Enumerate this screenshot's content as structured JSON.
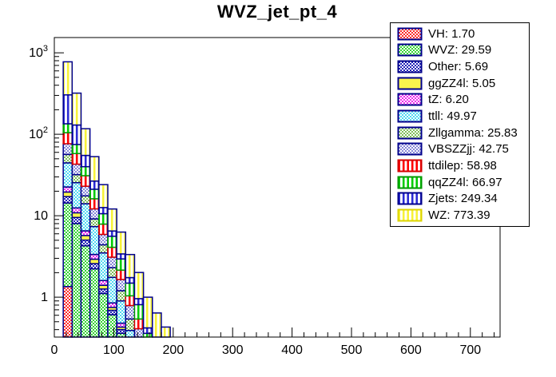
{
  "title": "WVZ_jet_pt_4",
  "chart_data": {
    "type": "stacked-step-histogram",
    "title": "WVZ_jet_pt_4",
    "x_range": [
      0,
      750
    ],
    "x_major_step": 100,
    "x_minor_step": 20,
    "x_tick_labels": [
      "0",
      "100",
      "200",
      "300",
      "400",
      "500",
      "600",
      "700"
    ],
    "y_scale": "log",
    "y_range": [
      0.324,
      1540
    ],
    "y_ticks": [
      {
        "value": 1,
        "base": "1",
        "sup": ""
      },
      {
        "value": 10,
        "base": "10",
        "sup": ""
      },
      {
        "value": 100,
        "base": "10",
        "sup": "2"
      },
      {
        "value": 1000,
        "base": "10",
        "sup": "3"
      }
    ],
    "grid": false,
    "legend_position": "top-right",
    "bin_edges": [
      15,
      30,
      45,
      60,
      75,
      90,
      105,
      120,
      135,
      150,
      165,
      180,
      195
    ],
    "series": [
      {
        "name": "VH",
        "label": "VH: 1.70",
        "integral": 1.7,
        "pattern": "checker",
        "fill": "#ff2a2a",
        "line": "#00008b",
        "legend_border": "#00008b",
        "values": [
          1.35,
          0.22,
          0.07,
          0.03,
          0.01,
          0.01,
          0.01,
          0,
          0,
          0,
          0,
          0
        ]
      },
      {
        "name": "WVZ",
        "label": "WVZ: 29.59",
        "integral": 29.59,
        "pattern": "checker",
        "fill": "#35d435",
        "line": "#00008b",
        "legend_border": "#00008b",
        "values": [
          13.0,
          7.8,
          4.2,
          2.2,
          1.1,
          0.6,
          0.35,
          0.2,
          0.08,
          0.04,
          0.01,
          0.01
        ]
      },
      {
        "name": "Other",
        "label": "Other: 5.69",
        "integral": 5.69,
        "pattern": "checker",
        "fill": "#2121b8",
        "line": "#00008b",
        "legend_border": "#00008b",
        "values": [
          2.8,
          1.5,
          0.75,
          0.35,
          0.15,
          0.08,
          0.04,
          0.01,
          0.01,
          0,
          0,
          0
        ]
      },
      {
        "name": "ggZZ4l",
        "label": "ggZZ4l: 5.05",
        "integral": 5.05,
        "pattern": "solid",
        "fill": "#f9f44d",
        "line": "#00008b",
        "legend_border": "#00008b",
        "values": [
          2.4,
          1.35,
          0.7,
          0.35,
          0.14,
          0.06,
          0.03,
          0.01,
          0.01,
          0,
          0,
          0
        ]
      },
      {
        "name": "tZ",
        "label": "tZ: 6.20",
        "integral": 6.2,
        "pattern": "checker",
        "fill": "#ee2bee",
        "line": "#00008b",
        "legend_border": "#00008b",
        "values": [
          3.0,
          1.6,
          0.8,
          0.42,
          0.2,
          0.1,
          0.05,
          0.02,
          0.01,
          0,
          0,
          0
        ]
      },
      {
        "name": "ttll",
        "label": "ttll: 49.97",
        "integral": 49.97,
        "pattern": "checker",
        "fill": "#52d9f2",
        "line": "#00008b",
        "legend_border": "#00008b",
        "values": [
          22.0,
          13.0,
          7.5,
          4.0,
          1.9,
          0.9,
          0.42,
          0.15,
          0.07,
          0.02,
          0.01,
          0
        ]
      },
      {
        "name": "Zllgamma",
        "label": "Zllgamma: 25.83",
        "integral": 25.83,
        "pattern": "checker",
        "fill": "#7fbe59",
        "line": "#00008b",
        "legend_border": "#00008b",
        "values": [
          12.0,
          6.5,
          3.5,
          1.8,
          0.9,
          0.55,
          0.3,
          0.15,
          0.08,
          0.03,
          0.01,
          0.01
        ]
      },
      {
        "name": "VBSZZjj",
        "label": "VBSZZjj: 42.75",
        "integral": 42.75,
        "pattern": "checker",
        "fill": "#8787d8",
        "line": "#00008b",
        "legend_border": "#00008b",
        "values": [
          20.0,
          11.0,
          5.5,
          3.0,
          1.5,
          0.8,
          0.45,
          0.25,
          0.15,
          0.06,
          0.03,
          0.01
        ]
      },
      {
        "name": "ttdilep",
        "label": "ttdilep: 58.98",
        "integral": 58.98,
        "pattern": "vlines",
        "fill": "#ff0000",
        "line": "#d40000",
        "legend_border": "#d40000",
        "values": [
          28.0,
          15.0,
          8.0,
          4.0,
          2.0,
          1.0,
          0.5,
          0.25,
          0.13,
          0.06,
          0.03,
          0.01
        ]
      },
      {
        "name": "qqZZ4l",
        "label": "qqZZ4l: 66.97",
        "integral": 66.97,
        "pattern": "vlines",
        "fill": "#00cc00",
        "line": "#009900",
        "legend_border": "#009900",
        "values": [
          30.0,
          17.0,
          9.0,
          5.0,
          2.7,
          1.5,
          0.8,
          0.45,
          0.27,
          0.15,
          0.07,
          0.03
        ]
      },
      {
        "name": "Zjets",
        "label": "Zjets: 249.34",
        "integral": 249.34,
        "pattern": "vlines",
        "fill": "#2b2bd4",
        "line": "#00008b",
        "legend_border": "#00008b",
        "values": [
          170.0,
          55.0,
          15.0,
          5.5,
          2.0,
          0.9,
          0.45,
          0.25,
          0.15,
          0.06,
          0.02,
          0.01
        ]
      },
      {
        "name": "WZ",
        "label": "WZ: 773.39",
        "integral": 773.39,
        "pattern": "vlines",
        "fill": "#f7f238",
        "line": "#00008b",
        "legend_border": "#ddd400",
        "values": [
          470.85,
          190.0,
          62.0,
          26.5,
          11.5,
          5.6,
          2.9,
          1.6,
          1.05,
          0.58,
          0.46,
          0.35
        ]
      }
    ]
  }
}
